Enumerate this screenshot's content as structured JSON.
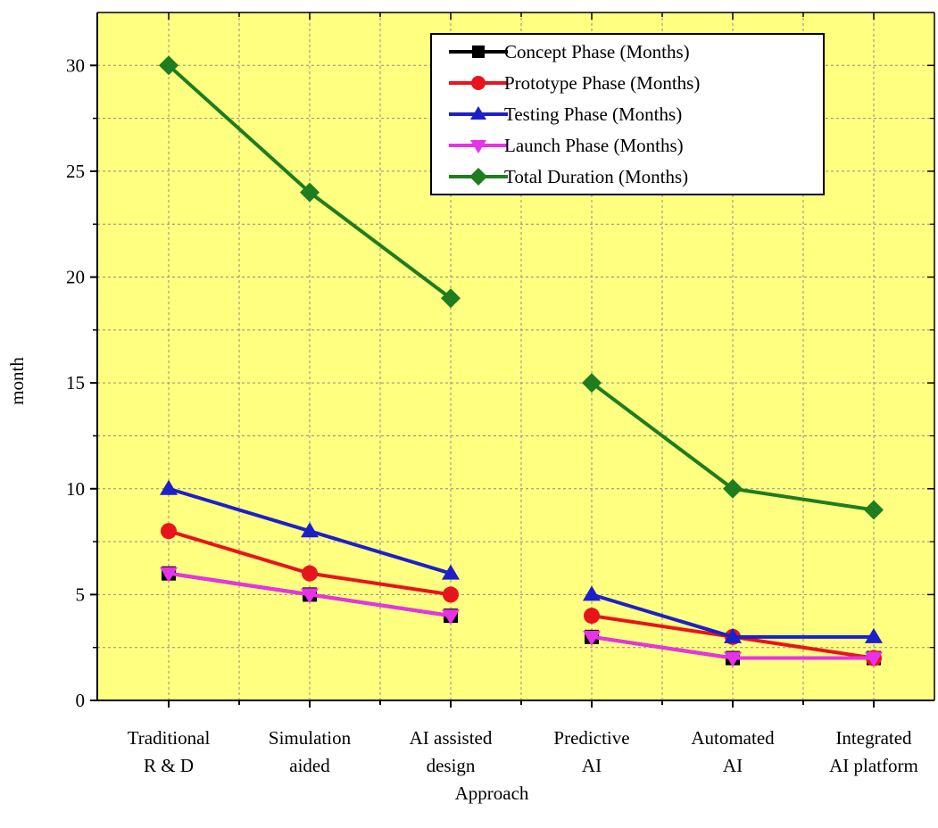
{
  "chart_data": {
    "type": "line",
    "title": "",
    "xlabel": "Approach",
    "ylabel": "month",
    "categories": [
      [
        "Traditional",
        "R & D"
      ],
      [
        "Simulation",
        "aided"
      ],
      [
        "AI assisted",
        "design"
      ],
      [
        "Predictive",
        "AI"
      ],
      [
        "Automated",
        "AI"
      ],
      [
        "Integrated",
        "AI platform"
      ]
    ],
    "ylim": [
      0,
      32.5
    ],
    "yticks": [
      0,
      5,
      10,
      15,
      20,
      25,
      30
    ],
    "grid": true,
    "background_color": "#ffff80",
    "legend_position": "top-right",
    "series": [
      {
        "name": "Concept Phase (Months)",
        "color": "#000000",
        "marker": "square",
        "values": [
          6,
          5,
          4,
          3,
          2,
          2
        ]
      },
      {
        "name": "Prototype Phase (Months)",
        "color": "#e8141c",
        "marker": "circle",
        "values": [
          8,
          6,
          5,
          4,
          3,
          2
        ]
      },
      {
        "name": "Testing Phase (Months)",
        "color": "#1c20c8",
        "marker": "triangle-up",
        "values": [
          10,
          8,
          6,
          5,
          3,
          3
        ]
      },
      {
        "name": "Launch Phase (Months)",
        "color": "#e832e8",
        "marker": "triangle-down",
        "values": [
          6,
          5,
          4,
          3,
          2,
          2
        ]
      },
      {
        "name": "Total Duration (Months)",
        "color": "#1e7d1e",
        "marker": "diamond",
        "values": [
          30,
          24,
          19,
          15,
          10,
          9
        ]
      }
    ]
  }
}
